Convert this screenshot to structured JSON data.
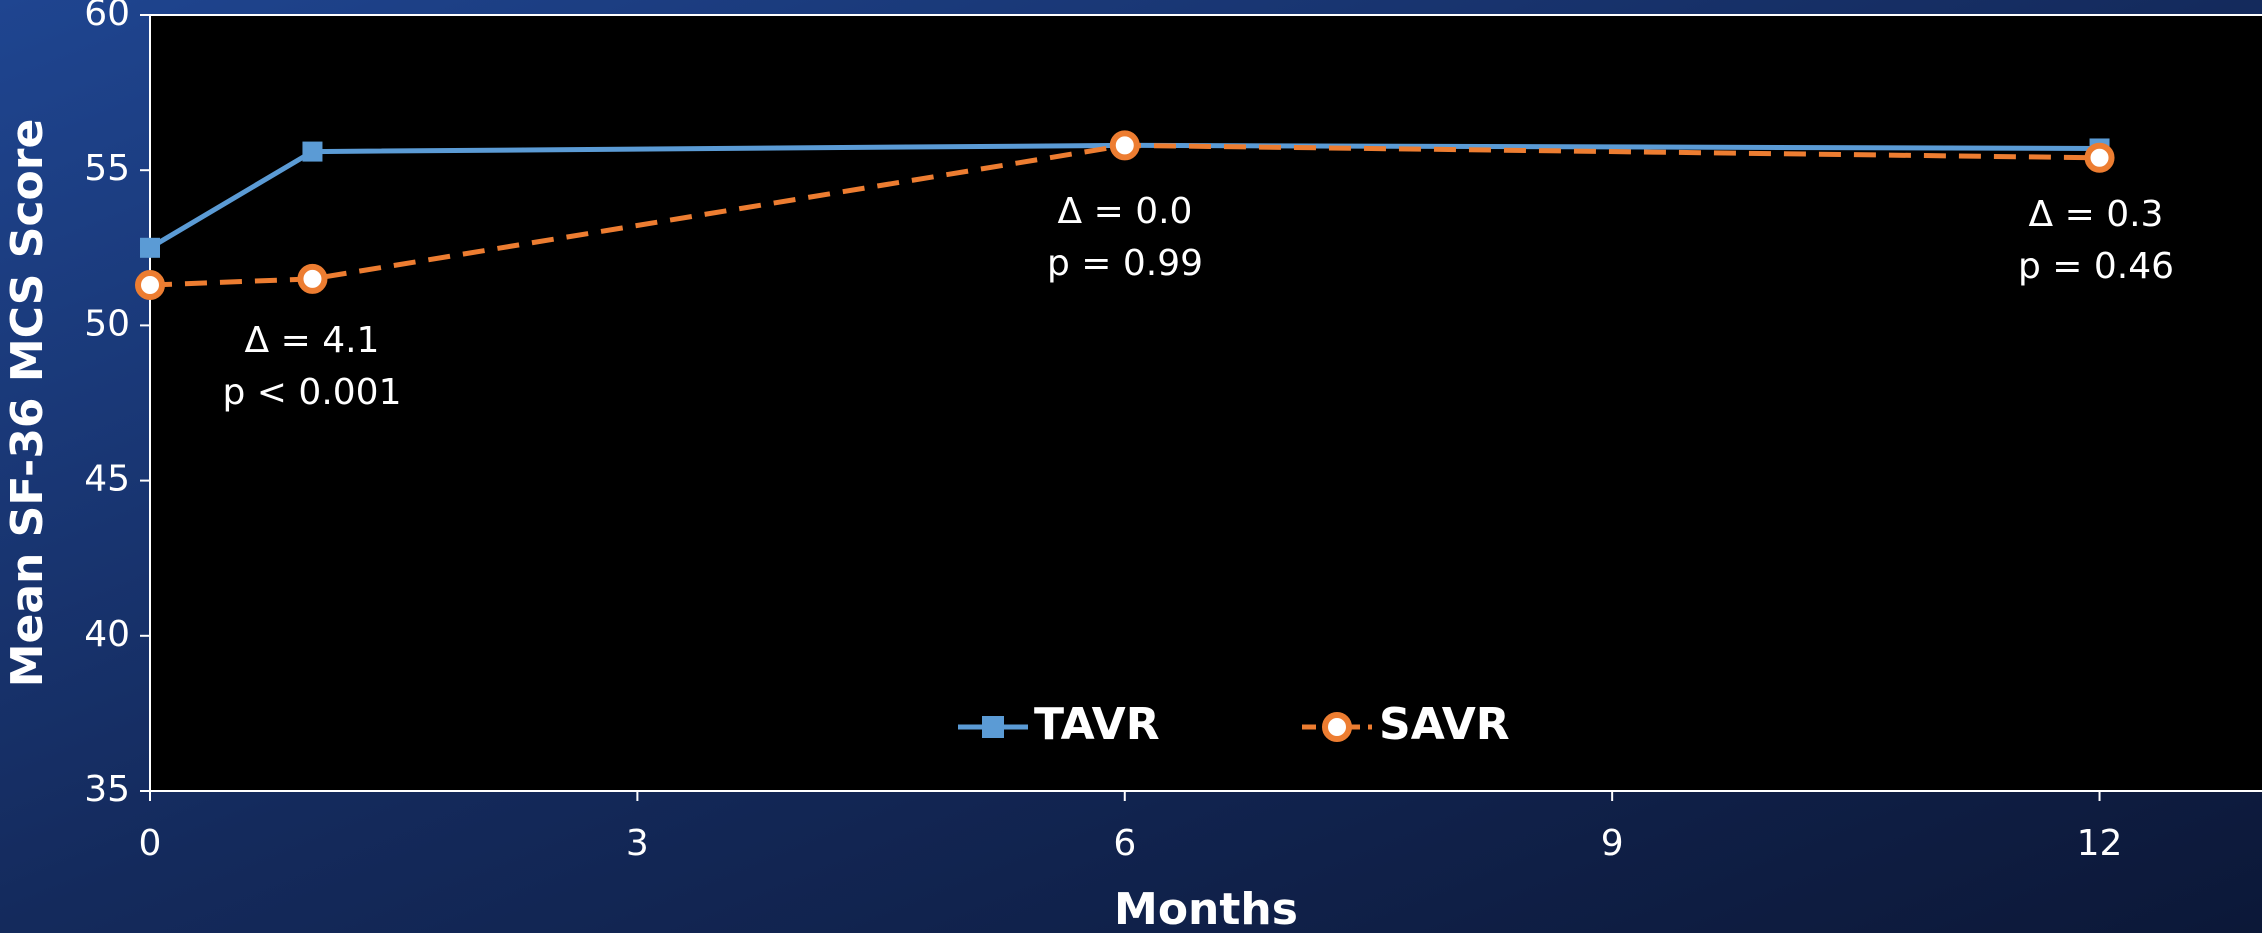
{
  "chart_data": {
    "type": "line",
    "x_label": "Months",
    "y_label": "Mean SF-36 MCS Score",
    "x": [
      0,
      1,
      6,
      12
    ],
    "series": [
      {
        "name": "TAVR",
        "color": "#5b9bd5",
        "marker": "square",
        "dashed": false,
        "values": [
          52.5,
          55.6,
          55.8,
          55.7
        ]
      },
      {
        "name": "SAVR",
        "color": "#ed7d31",
        "marker": "circle",
        "dashed": true,
        "values": [
          51.3,
          51.5,
          55.8,
          55.4
        ]
      }
    ],
    "annotations": [
      [
        "Δ = 4.1",
        "p < 0.001"
      ],
      [
        "Δ = 0.0",
        "p = 0.99"
      ],
      [
        "Δ = 0.3",
        "p = 0.46"
      ]
    ],
    "xlim": [
      0,
      13
    ],
    "xticks": [
      0,
      3,
      6,
      9,
      12
    ],
    "ylim": [
      35,
      60
    ],
    "yticks": [
      35,
      40,
      45,
      50,
      55,
      60
    ],
    "legend": "bottom"
  }
}
